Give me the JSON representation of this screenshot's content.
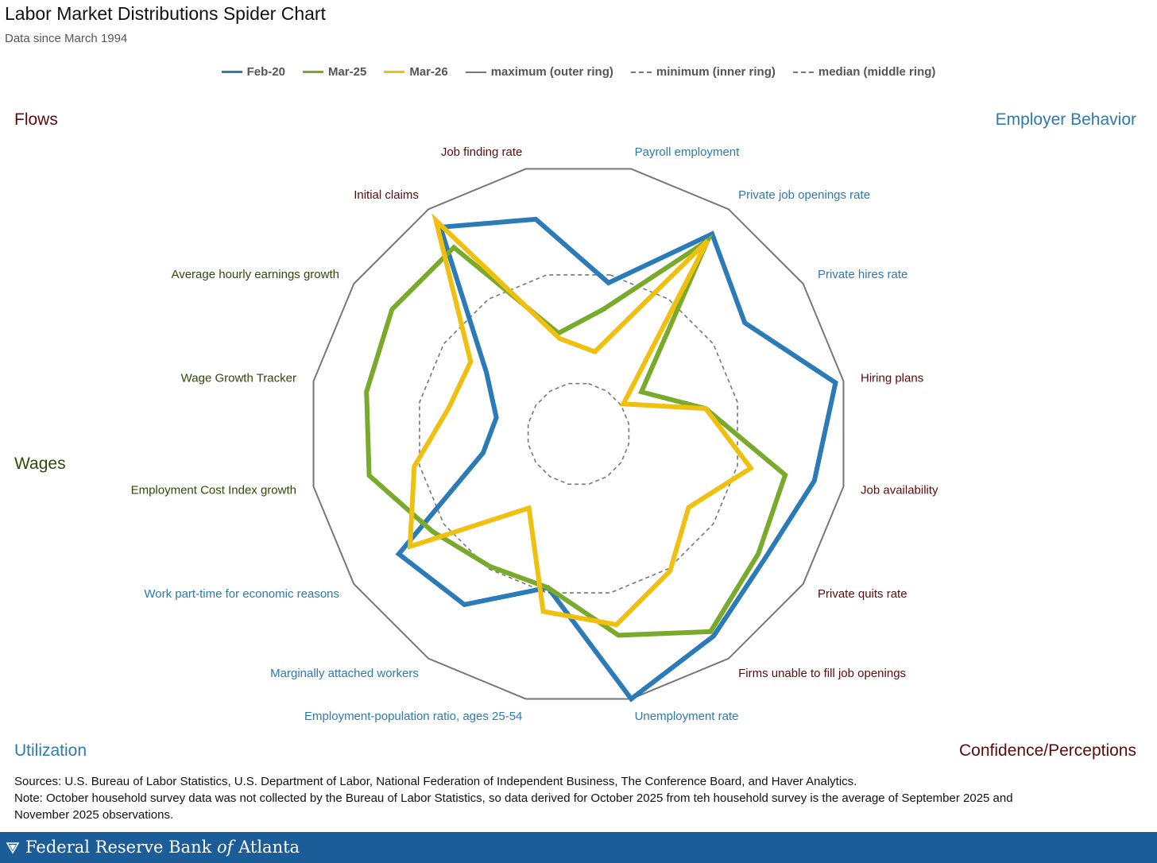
{
  "header": {
    "title": "Labor Market Distributions Spider Chart",
    "subtitle": "Data since March 1994"
  },
  "legend": [
    {
      "label": "Feb-20",
      "color": "#2b7bb9",
      "style": "solid"
    },
    {
      "label": "Mar-25",
      "color": "#7aaa2b",
      "style": "solid"
    },
    {
      "label": "Mar-26",
      "color": "#f0c010",
      "style": "solid"
    },
    {
      "label": "maximum (outer ring)",
      "color": "#777777",
      "style": "solid"
    },
    {
      "label": "minimum (inner ring)",
      "color": "#777777",
      "style": "dashed"
    },
    {
      "label": "median (middle ring)",
      "color": "#777777",
      "style": "dashed"
    }
  ],
  "quadrants": {
    "flows": {
      "label": "Flows",
      "color": "#5a0c0c"
    },
    "employer": {
      "label": "Employer Behavior",
      "color": "#2e7aa8"
    },
    "wages": {
      "label": "Wages",
      "color": "#2f4a0a"
    },
    "utilization": {
      "label": "Utilization",
      "color": "#2e7aa8"
    },
    "confidence": {
      "label": "Confidence/Perceptions",
      "color": "#5a0c0c"
    }
  },
  "chart_data": {
    "type": "radar",
    "axes": [
      {
        "label": "Payroll employment",
        "group": "employer"
      },
      {
        "label": "Private job openings rate",
        "group": "employer"
      },
      {
        "label": "Private hires rate",
        "group": "employer"
      },
      {
        "label": "Hiring plans",
        "group": "confidence"
      },
      {
        "label": "Job availability",
        "group": "confidence"
      },
      {
        "label": "Private quits rate",
        "group": "confidence"
      },
      {
        "label": "Firms unable to fill job openings",
        "group": "confidence"
      },
      {
        "label": "Unemployment rate",
        "group": "utilization"
      },
      {
        "label": "Employment-population ratio, ages 25-54",
        "group": "utilization"
      },
      {
        "label": "Marginally attached workers",
        "group": "utilization"
      },
      {
        "label": "Work part-time for economic reasons",
        "group": "utilization"
      },
      {
        "label": "Employment Cost Index growth",
        "group": "wages"
      },
      {
        "label": "Wage Growth Tracker",
        "group": "wages"
      },
      {
        "label": "Average hourly earnings growth",
        "group": "wages"
      },
      {
        "label": "Initial claims",
        "group": "flows"
      },
      {
        "label": "Job finding rate",
        "group": "flows"
      }
    ],
    "series": [
      {
        "name": "Feb-20",
        "color": "#2b7bb9",
        "values": [
          0.57,
          0.89,
          0.74,
          0.97,
          0.89,
          0.83,
          0.9,
          1.0,
          0.58,
          0.76,
          0.8,
          0.36,
          0.31,
          0.41,
          0.92,
          0.81
        ]
      },
      {
        "name": "Mar-25",
        "color": "#7aaa2b",
        "values": [
          0.47,
          0.86,
          0.28,
          0.48,
          0.78,
          0.8,
          0.88,
          0.76,
          0.58,
          0.59,
          0.65,
          0.79,
          0.8,
          0.83,
          0.83,
          0.38
        ]
      },
      {
        "name": "Mar-26",
        "color": "#f0c010",
        "values": [
          0.31,
          0.86,
          0.2,
          0.48,
          0.65,
          0.49,
          0.61,
          0.72,
          0.67,
          0.33,
          0.75,
          0.62,
          0.49,
          0.48,
          0.95,
          0.36
        ]
      }
    ],
    "rings": {
      "max": 1.0,
      "median": 0.6,
      "min": 0.19
    },
    "legend_position": "top",
    "grid": false
  },
  "footer": {
    "sources": "Sources: U.S. Bureau of Labor Statistics, U.S. Department of Labor, National Federation of Independent Business, The Conference Board, and Haver Analytics.",
    "note": "Note: October household survey data was not collected by the Bureau of Labor Statistics, so data derived for October 2025 from teh household survey is the average of September 2025 and November 2025 observations.",
    "brand_prefix": "Federal Reserve Bank ",
    "brand_of": "of",
    "brand_suffix": " Atlanta"
  }
}
